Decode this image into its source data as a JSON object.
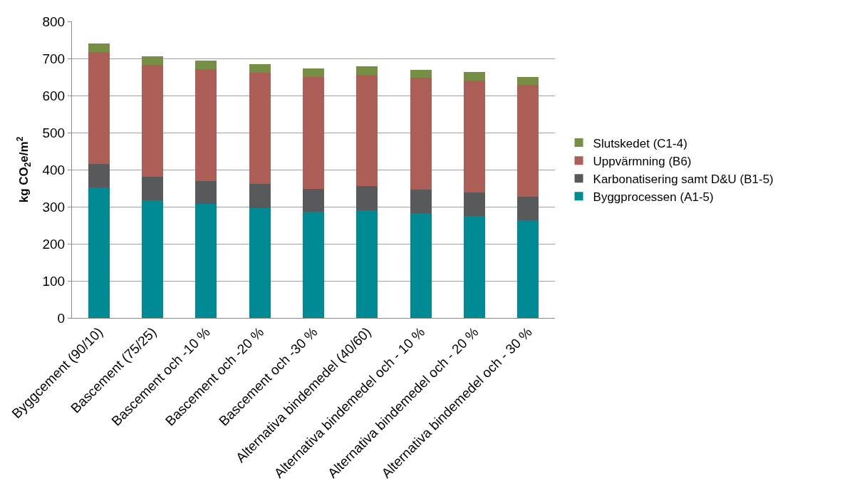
{
  "chart_data": {
    "type": "bar",
    "stacked": true,
    "ylabel": "kg CO$_{2}$e/m$^{2}$",
    "categories": [
      "Byggcement (90/10)",
      "Bascement (75/25)",
      "Bascement och -10 %",
      "Bascement och -20 %",
      "Bascement och -30 %",
      "Alternativa bindemedel (40/60)",
      "Alternativa bindemedel och - 10 %",
      "Alternativa bindemedel och - 20 %",
      "Alternativa bindemedel och - 30 %"
    ],
    "series": [
      {
        "name": "Byggprocessen (A1-5)",
        "color": "#008b94",
        "values": [
          351,
          318,
          308,
          296,
          287,
          291,
          283,
          275,
          263
        ]
      },
      {
        "name": "Karbonatisering samt D&U (B1-5)",
        "color": "#58595b",
        "values": [
          65,
          63,
          62,
          65,
          62,
          64,
          63,
          63,
          63
        ]
      },
      {
        "name": "Uppvärmning (B6)",
        "color": "#ad5f57",
        "values": [
          301,
          301,
          301,
          301,
          301,
          301,
          302,
          302,
          302
        ]
      },
      {
        "name": "Slutskedet (C1-4)",
        "color": "#778f44",
        "values": [
          24,
          24,
          23,
          23,
          23,
          23,
          22,
          23,
          22
        ]
      }
    ],
    "ylim": [
      0,
      800
    ],
    "yticks": [
      0,
      100,
      200,
      300,
      400,
      500,
      600,
      700,
      800
    ],
    "grid": "y",
    "legend": "right"
  }
}
